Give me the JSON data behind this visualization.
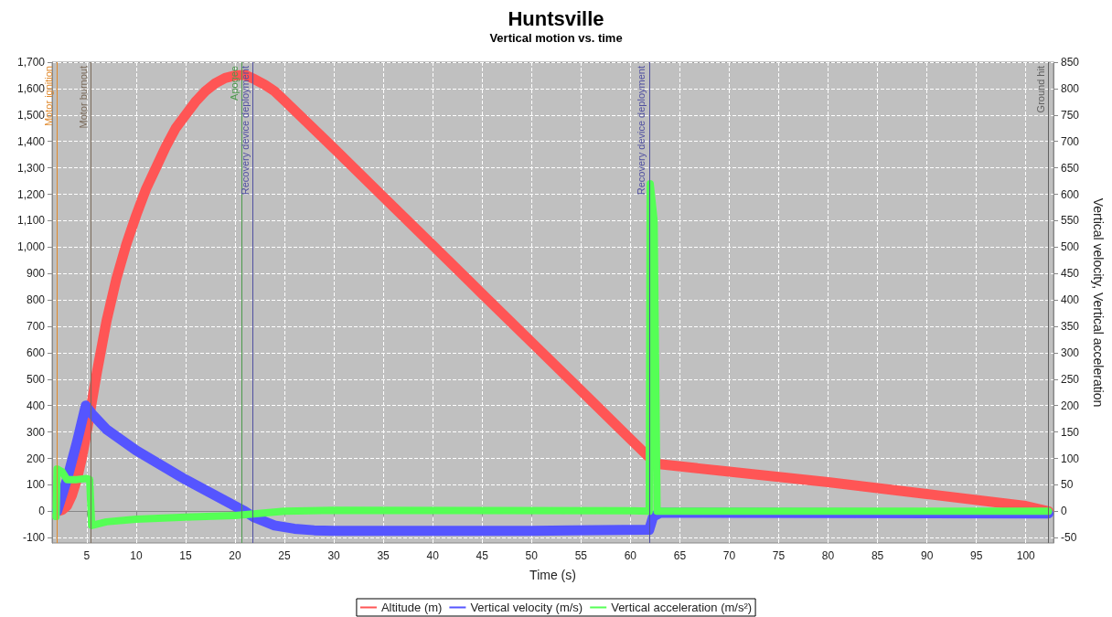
{
  "chart_data": {
    "type": "line",
    "title": "Huntsville",
    "subtitle": "Vertical motion vs. time",
    "xlabel": "Time (s)",
    "y2label": "Vertical velocity, Vertical acceleration",
    "xlim": [
      1.5,
      102.8
    ],
    "xticks": [
      5,
      10,
      15,
      20,
      25,
      30,
      35,
      40,
      45,
      50,
      55,
      60,
      65,
      70,
      75,
      80,
      85,
      90,
      95,
      100
    ],
    "ylim": [
      -120,
      1700
    ],
    "yticks": [
      -100,
      0,
      100,
      200,
      300,
      400,
      500,
      600,
      700,
      800,
      900,
      {
        "value": 1000,
        "label": "1,000"
      },
      {
        "value": 1100,
        "label": "1,100"
      },
      {
        "value": 1200,
        "label": "1,200"
      },
      {
        "value": 1300,
        "label": "1,300"
      },
      {
        "value": 1400,
        "label": "1,400"
      },
      {
        "value": 1500,
        "label": "1,500"
      },
      {
        "value": 1600,
        "label": "1,600"
      },
      {
        "value": 1700,
        "label": "1,700"
      }
    ],
    "y2lim": [
      -60,
      850
    ],
    "y2ticks": [
      -50,
      0,
      50,
      100,
      150,
      200,
      250,
      300,
      350,
      400,
      450,
      500,
      550,
      600,
      650,
      700,
      750,
      800,
      850
    ],
    "grid": true,
    "legend": "bottom",
    "marker": "none",
    "line_style": "solid",
    "series": [
      {
        "name": "Altitude (m)",
        "color": "#ff5555",
        "x": [
          2,
          2.5,
          3,
          3.5,
          4,
          4.5,
          5,
          5.5,
          6,
          7,
          8,
          9,
          10,
          11,
          12,
          13,
          14,
          15,
          16,
          17,
          18,
          19,
          20,
          21,
          22,
          23,
          24,
          25,
          30,
          35,
          40,
          45,
          50,
          55,
          60,
          61.9,
          62.5,
          70,
          80,
          90,
          100,
          102.3
        ],
        "values": [
          0,
          5,
          20,
          60,
          120,
          200,
          300,
          410,
          520,
          720,
          880,
          1010,
          1120,
          1220,
          1300,
          1380,
          1450,
          1500,
          1550,
          1590,
          1620,
          1640,
          1650,
          1652,
          1635,
          1615,
          1590,
          1555,
          1374,
          1190,
          1007,
          823,
          640,
          457,
          273,
          204,
          180,
          150,
          110,
          65,
          20,
          0
        ]
      },
      {
        "name": "Vertical velocity (m/s)",
        "color": "#5555ff",
        "axis": "y2",
        "x": [
          2,
          3,
          4,
          4.9,
          5.5,
          7,
          10,
          15,
          20,
          21,
          22,
          24,
          26,
          28,
          30,
          50,
          54,
          61.9,
          62.3,
          63,
          102.3
        ],
        "values": [
          0,
          60,
          130,
          200,
          185,
          155,
          115,
          60,
          10,
          0,
          -12,
          -27,
          -33,
          -36,
          -37,
          -37,
          -36,
          -35,
          -10,
          -3,
          -4
        ]
      },
      {
        "name": "Vertical acceleration (m/s²)",
        "color": "#55ff55",
        "axis": "y2",
        "x": [
          1.9,
          2,
          2.5,
          3,
          4,
          5,
          5.3,
          5.5,
          7,
          10,
          15,
          20,
          25,
          30,
          60,
          61.9,
          62,
          62.4,
          62.7,
          63,
          102.3
        ],
        "values": [
          -10,
          80,
          75,
          60,
          60,
          62,
          60,
          -27,
          -20,
          -15,
          -11,
          -8,
          0,
          2,
          1,
          0,
          620,
          550,
          0,
          0,
          0
        ]
      }
    ],
    "ref_lines": [
      {
        "axis": "x",
        "value": 1.95,
        "label": "Motor ignition",
        "color": "#e08a2e"
      },
      {
        "axis": "x",
        "value": 5.45,
        "label": "Motor burnout",
        "color": "#7a6a5a"
      },
      {
        "axis": "x",
        "value": 20.7,
        "label": "Apogee",
        "color": "#4c9a4c"
      },
      {
        "axis": "x",
        "value": 21.8,
        "label": "Recovery device deployment",
        "color": "#5050a0"
      },
      {
        "axis": "x",
        "value": 61.9,
        "label": "Recovery device deployment",
        "color": "#5050a0"
      },
      {
        "axis": "x",
        "value": 102.3,
        "label": "Ground hit",
        "color": "#606060"
      }
    ]
  }
}
